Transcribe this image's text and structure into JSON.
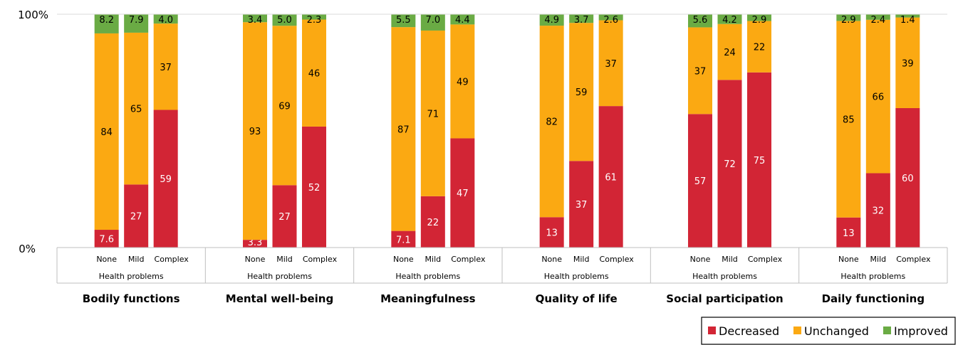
{
  "chart_data": {
    "type": "bar",
    "stacked": true,
    "normalized": true,
    "y_ticks": [
      "0%",
      "100%"
    ],
    "ylim": [
      0,
      100
    ],
    "grid": false,
    "legend_position": "bottom-right",
    "category_labels": [
      "None",
      "Mild",
      "Complex"
    ],
    "subgroup_label": "Health problems",
    "colors": {
      "Decreased": "#d22535",
      "Unchanged": "#fba912",
      "Improved": "#6aab44"
    },
    "legend": [
      "Decreased",
      "Unchanged",
      "Improved"
    ],
    "groups": [
      {
        "name": "Bodily functions",
        "Decreased": [
          "7.6",
          "27",
          "59"
        ],
        "Unchanged": [
          "84",
          "65",
          "37"
        ],
        "Improved": [
          "8.2",
          "7.9",
          "4.0"
        ]
      },
      {
        "name": "Mental well-being",
        "Decreased": [
          "3.3",
          "27",
          "52"
        ],
        "Unchanged": [
          "93",
          "69",
          "46"
        ],
        "Improved": [
          "3.4",
          "5.0",
          "2.3"
        ]
      },
      {
        "name": "Meaningfulness",
        "Decreased": [
          "7.1",
          "22",
          "47"
        ],
        "Unchanged": [
          "87",
          "71",
          "49"
        ],
        "Improved": [
          "5.5",
          "7.0",
          "4.4"
        ]
      },
      {
        "name": "Quality of life",
        "Decreased": [
          "13",
          "37",
          "61"
        ],
        "Unchanged": [
          "82",
          "59",
          "37"
        ],
        "Improved": [
          "4.9",
          "3.7",
          "2.6"
        ]
      },
      {
        "name": "Social participation",
        "Decreased": [
          "57",
          "72",
          "75"
        ],
        "Unchanged": [
          "37",
          "24",
          "22"
        ],
        "Improved": [
          "5.6",
          "4.2",
          "2.9"
        ]
      },
      {
        "name": "Daily functioning",
        "Decreased": [
          "13",
          "32",
          "60"
        ],
        "Unchanged": [
          "85",
          "66",
          "39"
        ],
        "Improved": [
          "2.9",
          "2.4",
          "1.4"
        ]
      }
    ]
  }
}
